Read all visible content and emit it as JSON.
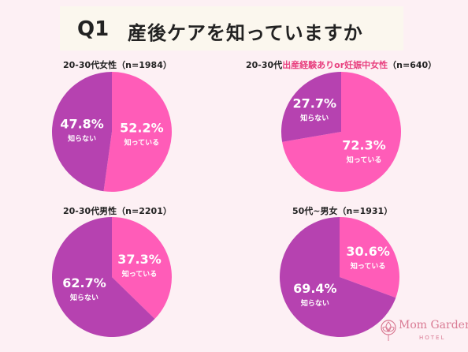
{
  "header": {
    "q_label": "Q1",
    "question": "産後ケアを知っていますか"
  },
  "colors": {
    "known": "#ff5cb8",
    "unknown": "#b642b0"
  },
  "chart_data": [
    {
      "type": "pie",
      "title_prefix": "20-30代女性",
      "title_highlight": "",
      "title_suffix": "（n=1984）",
      "slices": [
        {
          "label": "知っている",
          "value": 52.2,
          "pct_text": "52.2%",
          "color": "#ff5cb8"
        },
        {
          "label": "知らない",
          "value": 47.8,
          "pct_text": "47.8%",
          "color": "#b642b0"
        }
      ]
    },
    {
      "type": "pie",
      "title_prefix": "20-30代",
      "title_highlight": "出産経験ありor妊娠中女性",
      "title_suffix": "（n=640）",
      "slices": [
        {
          "label": "知っている",
          "value": 72.3,
          "pct_text": "72.3%",
          "color": "#ff5cb8"
        },
        {
          "label": "知らない",
          "value": 27.7,
          "pct_text": "27.7%",
          "color": "#b642b0"
        }
      ]
    },
    {
      "type": "pie",
      "title_prefix": "20-30代男性",
      "title_highlight": "",
      "title_suffix": "（n=2201）",
      "slices": [
        {
          "label": "知っている",
          "value": 37.3,
          "pct_text": "37.3%",
          "color": "#ff5cb8"
        },
        {
          "label": "知らない",
          "value": 62.7,
          "pct_text": "62.7%",
          "color": "#b642b0"
        }
      ]
    },
    {
      "type": "pie",
      "title_prefix": "50代~男女",
      "title_highlight": "",
      "title_suffix": "（n=1931）",
      "slices": [
        {
          "label": "知っている",
          "value": 30.6,
          "pct_text": "30.6%",
          "color": "#ff5cb8"
        },
        {
          "label": "知らない",
          "value": 69.4,
          "pct_text": "69.4%",
          "color": "#b642b0"
        }
      ]
    }
  ],
  "logo": {
    "name": "Mom Garden",
    "sub": "HOTEL"
  }
}
